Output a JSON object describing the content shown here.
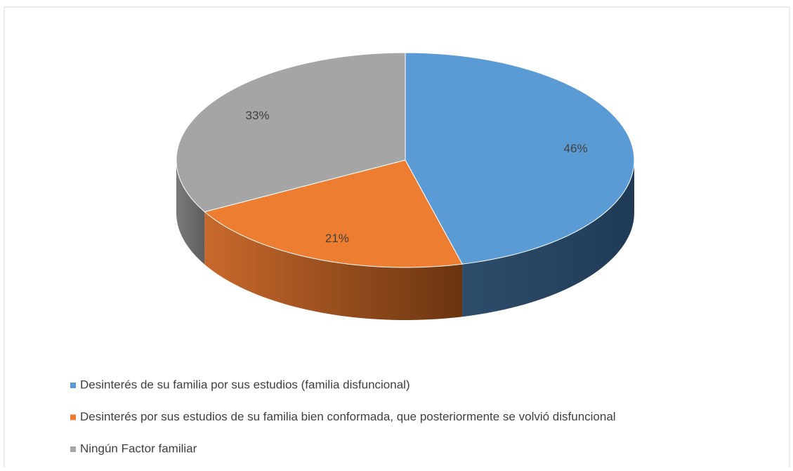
{
  "chart_data": {
    "type": "pie",
    "categories": [
      "Desinterés de su familia por sus estudios (familia disfuncional)",
      "Desinterés por sus estudios de su familia bien conformada, que posteriormente se volvió disfuncional",
      "Ningún Factor familiar"
    ],
    "values": [
      46,
      21,
      33
    ],
    "value_labels": [
      "46%",
      "21%",
      "33%"
    ],
    "colors": [
      "#5b9bd5",
      "#ed7d31",
      "#a5a5a5"
    ],
    "legend": "bottom"
  }
}
